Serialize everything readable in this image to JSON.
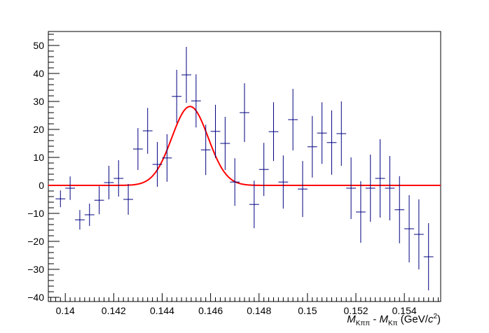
{
  "chart_data": {
    "type": "scatter",
    "xlabel_parts": {
      "m1": "M",
      "sub1": "Kππ",
      "dash": " - ",
      "m2": "M",
      "sub2": "Kπ",
      "unit_pre": " (GeV/",
      "unit_c": "c",
      "unit_exp": "2",
      "unit_post": ")"
    },
    "xlim": [
      0.1393,
      0.1555
    ],
    "ylim": [
      -41.5,
      55
    ],
    "x_ticks": [
      0.14,
      0.142,
      0.144,
      0.146,
      0.148,
      0.15,
      0.152,
      0.154
    ],
    "x_tick_labels": [
      "0.14",
      "0.142",
      "0.144",
      "0.146",
      "0.148",
      "0.15",
      "0.152",
      "0.154"
    ],
    "y_ticks": [
      -40,
      -30,
      -20,
      -10,
      0,
      10,
      20,
      30,
      40,
      50
    ],
    "y_tick_labels": [
      "−40",
      "−30",
      "−20",
      "−10",
      "0",
      "10",
      "20",
      "30",
      "40",
      "50"
    ],
    "bin_width": 0.0004,
    "series": [
      {
        "style": "errorbar",
        "color": "#000080",
        "points": [
          {
            "x": 0.1398,
            "y": -4.8,
            "err": 3.0
          },
          {
            "x": 0.1402,
            "y": -1.0,
            "err": 4.2
          },
          {
            "x": 0.1406,
            "y": -12.3,
            "err": 3.5
          },
          {
            "x": 0.141,
            "y": -10.5,
            "err": 4.0
          },
          {
            "x": 0.1414,
            "y": -5.3,
            "err": 5.0
          },
          {
            "x": 0.1418,
            "y": 1.0,
            "err": 6.0
          },
          {
            "x": 0.1422,
            "y": 2.5,
            "err": 6.5
          },
          {
            "x": 0.1426,
            "y": -5.0,
            "err": 5.5
          },
          {
            "x": 0.143,
            "y": 13.0,
            "err": 7.5
          },
          {
            "x": 0.1434,
            "y": 19.5,
            "err": 8.2
          },
          {
            "x": 0.1438,
            "y": 7.5,
            "err": 8.0
          },
          {
            "x": 0.1442,
            "y": 9.8,
            "err": 8.5
          },
          {
            "x": 0.1446,
            "y": 31.8,
            "err": 9.5
          },
          {
            "x": 0.145,
            "y": 39.5,
            "err": 10.0
          },
          {
            "x": 0.1454,
            "y": 30.2,
            "err": 9.5
          },
          {
            "x": 0.1458,
            "y": 12.7,
            "err": 9.0
          },
          {
            "x": 0.1462,
            "y": 19.3,
            "err": 9.5
          },
          {
            "x": 0.1466,
            "y": 15.0,
            "err": 9.5
          },
          {
            "x": 0.147,
            "y": 1.2,
            "err": 8.5
          },
          {
            "x": 0.1474,
            "y": 26.0,
            "err": 10.5
          },
          {
            "x": 0.1478,
            "y": -6.8,
            "err": 8.5
          },
          {
            "x": 0.1482,
            "y": 5.7,
            "err": 9.5
          },
          {
            "x": 0.1486,
            "y": 19.2,
            "err": 10.5
          },
          {
            "x": 0.149,
            "y": 1.2,
            "err": 9.5
          },
          {
            "x": 0.1494,
            "y": 23.5,
            "err": 11.0
          },
          {
            "x": 0.1498,
            "y": -1.3,
            "err": 10.0
          },
          {
            "x": 0.1502,
            "y": 13.8,
            "err": 11.0
          },
          {
            "x": 0.1506,
            "y": 18.7,
            "err": 11.0
          },
          {
            "x": 0.151,
            "y": 15.3,
            "err": 11.5
          },
          {
            "x": 0.1514,
            "y": 18.5,
            "err": 11.5
          },
          {
            "x": 0.1518,
            "y": -1.0,
            "err": 11.0
          },
          {
            "x": 0.1522,
            "y": -9.5,
            "err": 11.0
          },
          {
            "x": 0.1526,
            "y": -1.0,
            "err": 12.0
          },
          {
            "x": 0.153,
            "y": 2.5,
            "err": 14.0
          },
          {
            "x": 0.1534,
            "y": -1.0,
            "err": 11.5
          },
          {
            "x": 0.1538,
            "y": -8.7,
            "err": 12.0
          },
          {
            "x": 0.1542,
            "y": -15.5,
            "err": 12.0
          },
          {
            "x": 0.1546,
            "y": -17.5,
            "err": 12.5
          },
          {
            "x": 0.155,
            "y": -25.5,
            "err": 12.0
          }
        ]
      },
      {
        "style": "gaussian-fit",
        "color": "#ff0000",
        "amplitude": 28.2,
        "mean": 0.14515,
        "sigma": 0.00075,
        "x_range": [
          0.1393,
          0.1555
        ]
      }
    ]
  }
}
